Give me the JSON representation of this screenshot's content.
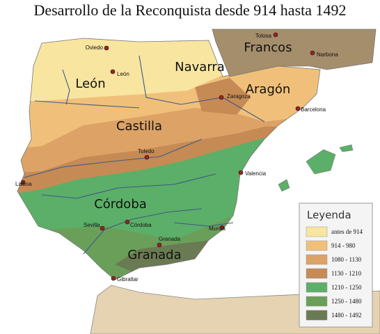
{
  "title": "Desarrollo de la Reconquista desde 914 hasta 1492",
  "regions": [
    "León",
    "Navarra",
    "Aragón",
    "Francos",
    "Castilla",
    "Córdoba",
    "Granada"
  ],
  "cities": [
    "Oviedo",
    "León",
    "Tolosa",
    "Narbona",
    "Zaragoza",
    "Barcelona",
    "Toledo",
    "Lisboa",
    "Valencia",
    "Sevilla",
    "Córdoba",
    "Granada",
    "Murcia",
    "Gibraltar"
  ],
  "legend": {
    "title": "Leyenda",
    "items": [
      {
        "label": "antes de 914",
        "color": "#f8e59f"
      },
      {
        "label": "914 - 980",
        "color": "#f0c07a"
      },
      {
        "label": "1080 - 1130",
        "color": "#dda266"
      },
      {
        "label": "1130 - 1210",
        "color": "#c68a54"
      },
      {
        "label": "1210 - 1250",
        "color": "#5caf68"
      },
      {
        "label": "1250 - 1480",
        "color": "#6a9f5a"
      },
      {
        "label": "1480 - 1492",
        "color": "#6a7a52"
      }
    ]
  }
}
